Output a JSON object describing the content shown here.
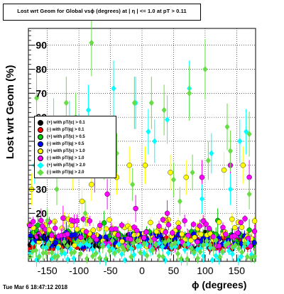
{
  "title": "Lost wrt Geom for Global vsϕ (degrees) at | η | <= 1.0 at pT > 0.11",
  "timestamp": "Tue Mar  6 18:47:12 2018",
  "chart_data": {
    "type": "scatter",
    "xlabel": "ϕ (degrees)",
    "ylabel": "Lost wrt Geom (%)",
    "xlim": [
      -180,
      180
    ],
    "ylim": [
      0,
      97
    ],
    "xticks": [
      -150,
      -100,
      -50,
      0,
      50,
      100,
      150
    ],
    "yticks": [
      10,
      20,
      30,
      40,
      50,
      60,
      70,
      80,
      90
    ],
    "legend_placement": "left",
    "series": [
      {
        "name": "(+) with pT/|c| > 0.1",
        "color": "#000000",
        "marker": "circle",
        "n": 72,
        "base": 8,
        "spread": 3,
        "outliers": [
          [
            -170,
            11
          ],
          [
            100,
            12
          ]
        ]
      },
      {
        "name": "(-) with pT/|q| > 0.1",
        "color": "#ff0000",
        "marker": "circle",
        "n": 72,
        "base": 8,
        "spread": 3,
        "outliers": [
          [
            -155,
            12
          ],
          [
            60,
            11
          ]
        ]
      },
      {
        "name": "(+) with pT/|c| > 0.5",
        "color": "#00cc00",
        "marker": "circle",
        "n": 72,
        "base": 10,
        "spread": 3,
        "outliers": [
          [
            -165,
            15
          ],
          [
            -60,
            16
          ],
          [
            120,
            17
          ],
          [
            170,
            13
          ]
        ]
      },
      {
        "name": "(-) with pT/|q| > 0.5",
        "color": "#0000ff",
        "marker": "circle",
        "n": 72,
        "base": 9,
        "spread": 3,
        "outliers": [
          [
            -120,
            12
          ],
          [
            30,
            11
          ]
        ]
      },
      {
        "name": "(+) with pT/|c| > 1.0",
        "color": "#ffff00",
        "marker": "circle",
        "n": 72,
        "base": 12,
        "spread": 6,
        "outliers": [
          [
            -175,
            30
          ],
          [
            -110,
            37
          ],
          [
            -80,
            32
          ],
          [
            -20,
            40
          ],
          [
            5,
            40
          ],
          [
            45,
            37
          ],
          [
            70,
            35
          ],
          [
            130,
            38
          ],
          [
            160,
            40
          ],
          [
            -95,
            25
          ],
          [
            -40,
            35
          ]
        ]
      },
      {
        "name": "(-) with pT/|q| > 1.0",
        "color": "#ff00ff",
        "marker": "circle",
        "n": 72,
        "base": 12,
        "spread": 6,
        "outliers": [
          [
            -160,
            17
          ],
          [
            -125,
            18
          ],
          [
            -90,
            45
          ],
          [
            -75,
            36
          ],
          [
            -55,
            28
          ],
          [
            -10,
            22
          ],
          [
            40,
            20
          ],
          [
            95,
            35
          ],
          [
            140,
            40
          ],
          [
            170,
            35
          ]
        ]
      },
      {
        "name": "(+) with pT/|q| > 2.0",
        "color": "#00ffff",
        "marker": "diamond",
        "n": 72,
        "base": 4,
        "spread": 4,
        "outliers": [
          [
            -170,
            40
          ],
          [
            -155,
            50
          ],
          [
            -140,
            58
          ],
          [
            -115,
            57
          ],
          [
            -100,
            52
          ],
          [
            -85,
            63
          ],
          [
            -45,
            72
          ],
          [
            -10,
            66
          ],
          [
            10,
            54
          ],
          [
            20,
            50
          ],
          [
            40,
            59
          ],
          [
            75,
            72
          ],
          [
            95,
            26
          ],
          [
            110,
            45
          ],
          [
            140,
            30
          ],
          [
            155,
            50
          ],
          [
            165,
            54
          ]
        ]
      },
      {
        "name": "(-) with pT/|q| > 2.0",
        "color": "#66dd44",
        "marker": "diamond",
        "n": 72,
        "base": 5,
        "spread": 4,
        "outliers": [
          [
            -167,
            68
          ],
          [
            -135,
            30
          ],
          [
            -120,
            66
          ],
          [
            -105,
            60
          ],
          [
            -80,
            91
          ],
          [
            -60,
            42
          ],
          [
            -40,
            45
          ],
          [
            -15,
            32
          ],
          [
            -12,
            66
          ],
          [
            15,
            66
          ],
          [
            35,
            63
          ],
          [
            50,
            34
          ],
          [
            75,
            70
          ],
          [
            80,
            37
          ],
          [
            100,
            80
          ],
          [
            105,
            42
          ],
          [
            135,
            56
          ],
          [
            140,
            46
          ],
          [
            170,
            28
          ],
          [
            -90,
            20
          ],
          [
            60,
            25
          ],
          [
            -150,
            17
          ],
          [
            170,
            53
          ]
        ]
      }
    ]
  }
}
